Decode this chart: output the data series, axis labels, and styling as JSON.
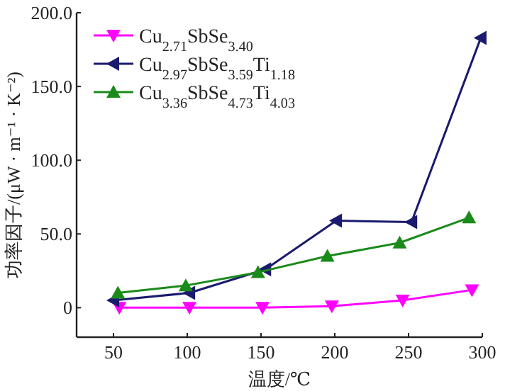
{
  "chart_data": {
    "type": "line",
    "xlabel": "温度/℃",
    "ylabel": "功率因子/(μW · m⁻¹ · K⁻²)",
    "xlim": [
      25,
      300
    ],
    "xticks": [
      50,
      100,
      150,
      200,
      250,
      300
    ],
    "ylim": [
      -20,
      200
    ],
    "yticks": [
      0,
      {
        "value": 50,
        "label": "50.0"
      },
      {
        "value": 100,
        "label": "100.0"
      },
      {
        "value": 150,
        "label": "150.0"
      },
      {
        "value": 200,
        "label": "200.0"
      }
    ],
    "legend": "top left",
    "grid": false,
    "series": [
      {
        "name": "Cu$_{2.71}$SbSe$_{3.40}$",
        "color": "#ff00ff",
        "marker": "triangle-down",
        "x": [
          54,
          101.5,
          151,
          198,
          246,
          293
        ],
        "values": [
          0,
          0,
          0,
          1,
          5,
          12
        ]
      },
      {
        "name": "Cu$_{2.97}$SbSe$_{3.59}$Ti$_{1.18}$",
        "color": "#1a1a6e",
        "marker": "triangle-left",
        "x": [
          50,
          101.5,
          153,
          201,
          252,
          299
        ],
        "values": [
          5,
          10,
          26,
          59,
          58,
          183
        ]
      },
      {
        "name": "Cu$_{3.36}$SbSe$_{4.73}$Ti$_{4.03}$",
        "color": "#1a8a1a",
        "marker": "triangle",
        "x": [
          53,
          99,
          148,
          195,
          244,
          291
        ],
        "values": [
          10,
          15,
          24,
          35,
          44,
          61
        ]
      }
    ]
  }
}
